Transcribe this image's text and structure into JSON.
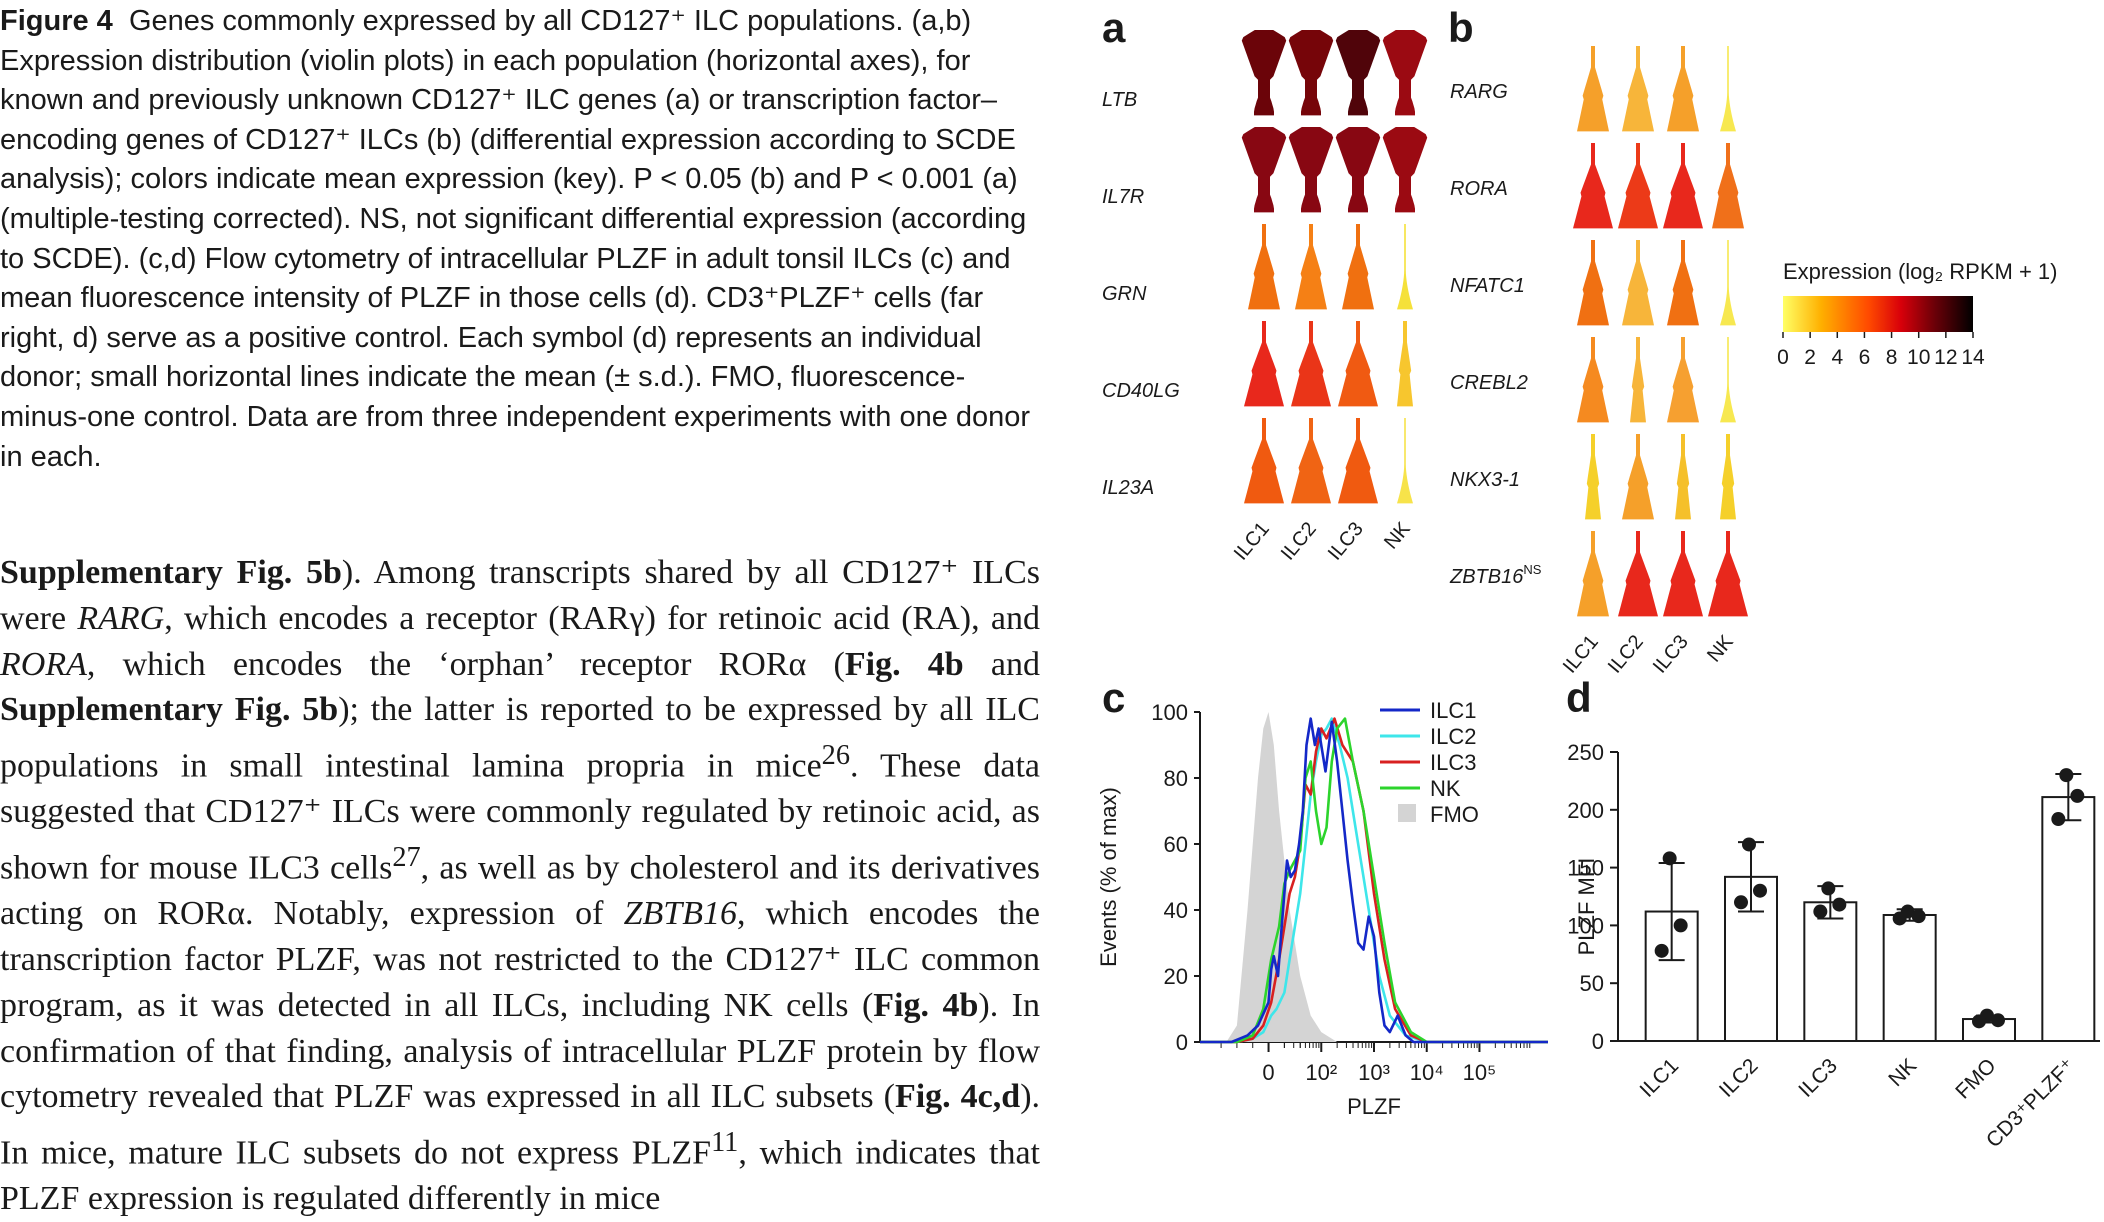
{
  "caption": {
    "fig_label": "Figure 4",
    "title": "Genes commonly expressed by all CD127⁺ ILC populations.",
    "text": "(a,b) Expression distribution (violin plots) in each population (horizontal axes), for known and previously unknown CD127⁺ ILC genes (a) or transcription factor–encoding genes of CD127⁺ ILCs (b) (differential expression according to SCDE analysis); colors indicate mean expression (key). P < 0.05 (b) and P < 0.001 (a) (multiple-testing corrected). NS, not significant differential expression (according to SCDE). (c,d) Flow cytometry of intracellular PLZF in adult tonsil ILCs (c) and mean fluorescence intensity of PLZF in those cells (d). CD3⁺PLZF⁺ cells (far right, d) serve as a positive control. Each symbol (d) represents an individual donor; small horizontal lines indicate the mean (± s.d.). FMO, fluorescence-minus-one control. Data are from three independent experiments with one donor in each."
  },
  "body": {
    "ref1": "Supplementary Fig. 5b",
    "t1": "). Among transcripts shared by all CD127⁺ ILCs were ",
    "gene1": "RARG",
    "t2": ", which encodes a receptor (RARγ) for retinoic acid (RA), and ",
    "gene2": "RORA",
    "t3": ", which encodes the ‘orphan’ receptor RORα (",
    "ref2": "Fig. 4b",
    "t4": " and ",
    "ref3": "Supplementary Fig. 5b",
    "t5": "); the latter is reported to be expressed by all ILC populations in small intestinal lamina propria in mice",
    "sup1": "26",
    "t6": ". These data suggested that CD127⁺ ILCs were commonly regulated by retinoic acid, as shown for mouse ILC3 cells",
    "sup2": "27",
    "t7": ", as well as by cholesterol and its derivatives acting on RORα. Notably, expression of ",
    "gene3": "ZBTB16",
    "t8": ", which encodes the transcription factor PLZF, was not restricted to the CD127⁺ ILC common program, as it was detected in all ILCs, including NK cells (",
    "ref4": "Fig. 4b",
    "t9": "). In confirmation of that finding, analysis of intracellular PLZF protein by flow cytometry revealed that PLZF was expressed in all ILC subsets (",
    "ref5": "Fig. 4c,d",
    "t10": "). In mice, mature ILC subsets do not express PLZF",
    "sup3": "11",
    "t11": ", which indicates that PLZF expression is regulated differently in mice"
  },
  "colorbar": {
    "title": "Expression (log₂ RPKM + 1)",
    "ticks": [
      "0",
      "2",
      "4",
      "6",
      "8",
      "10",
      "12",
      "14"
    ],
    "colors": [
      "#ffff66",
      "#ffb000",
      "#ff4a00",
      "#d8000a",
      "#6a0008",
      "#000000"
    ]
  },
  "chart_data": [
    {
      "type": "violin",
      "panel": "a",
      "populations": [
        "ILC1",
        "ILC2",
        "ILC3",
        "NK"
      ],
      "genes": [
        "LTB",
        "IL7R",
        "GRN",
        "CD40LG",
        "IL23A"
      ],
      "mean_expression": [
        [
          12,
          11.5,
          13,
          10
        ],
        [
          11,
          11,
          11,
          10
        ],
        [
          5,
          5,
          5,
          1
        ],
        [
          8,
          7.5,
          6,
          2
        ],
        [
          6,
          6,
          6,
          1
        ]
      ],
      "colors": [
        [
          "#6b0409",
          "#760509",
          "#50040a",
          "#9b0a12"
        ],
        [
          "#880712",
          "#880712",
          "#880712",
          "#9b0a12"
        ],
        [
          "#f07010",
          "#f58015",
          "#f07010",
          "#f5e13a"
        ],
        [
          "#e8281c",
          "#ea3518",
          "#f05a12",
          "#f7c62e"
        ],
        [
          "#f05a10",
          "#f06414",
          "#f05a10",
          "#f7e34a"
        ]
      ]
    },
    {
      "type": "violin",
      "panel": "b",
      "populations": [
        "ILC1",
        "ILC2",
        "ILC3",
        "NK"
      ],
      "genes": [
        "RARG",
        "RORA",
        "NFATC1",
        "CREBL2",
        "NKX3-1",
        "ZBTB16"
      ],
      "gene_superscripts": [
        "",
        "",
        "",
        "",
        "",
        "NS"
      ],
      "mean_expression": [
        [
          4,
          3.5,
          4,
          0.5
        ],
        [
          7,
          7,
          7,
          5
        ],
        [
          5,
          3.5,
          5,
          1
        ],
        [
          4,
          2.5,
          3,
          0.5
        ],
        [
          2,
          3,
          2.5,
          2
        ],
        [
          4,
          7,
          7,
          7
        ]
      ],
      "colors": [
        [
          "#f5a02a",
          "#f7b53a",
          "#f5a02a",
          "#f7e850"
        ],
        [
          "#e8281c",
          "#ec3a18",
          "#e8281c",
          "#f0701a"
        ],
        [
          "#f07012",
          "#f7b53a",
          "#f07012",
          "#f7e850"
        ],
        [
          "#f58a20",
          "#f7b53a",
          "#f6a030",
          "#f7e850"
        ],
        [
          "#f5d02a",
          "#f5a02a",
          "#f5c02a",
          "#f5d02a"
        ],
        [
          "#f5a02a",
          "#e8281c",
          "#e8281c",
          "#e8281c"
        ]
      ]
    },
    {
      "type": "line",
      "panel": "c",
      "xlabel": "PLZF",
      "ylabel": "Events (% of max)",
      "ylim": [
        0,
        100
      ],
      "yticks": [
        "0",
        "20",
        "40",
        "60",
        "80",
        "100"
      ],
      "xticks": [
        "0",
        "10²",
        "10³",
        "10⁴",
        "10⁵"
      ],
      "series": [
        {
          "name": "ILC1",
          "color": "#1428c8",
          "x": [
            -1.3,
            -1,
            -0.7,
            -0.4,
            -0.2,
            0,
            0.05,
            0.1,
            0.18,
            0.25,
            0.35,
            0.42,
            0.5,
            0.58,
            0.65,
            0.72,
            0.8,
            0.88,
            0.95,
            1.02,
            1.08,
            1.2,
            1.3,
            1.4,
            1.5,
            1.6,
            1.7,
            1.8,
            1.9,
            2,
            2.1,
            2.2,
            2.3,
            2.45,
            2.6,
            2.75,
            2.9,
            3,
            3.2,
            3.5,
            4,
            4.5,
            5,
            5.3
          ],
          "y": [
            0,
            0,
            0,
            2,
            5,
            12,
            22,
            26,
            20,
            35,
            55,
            50,
            52,
            60,
            70,
            90,
            98,
            90,
            95,
            88,
            82,
            97,
            85,
            70,
            55,
            42,
            30,
            28,
            38,
            32,
            15,
            5,
            3,
            8,
            2,
            0,
            0,
            0,
            0,
            0,
            0,
            0,
            0,
            0
          ]
        },
        {
          "name": "ILC2",
          "color": "#3ee6ea",
          "x": [
            -1.3,
            -0.6,
            -0.3,
            -0.1,
            0.05,
            0.15,
            0.3,
            0.4,
            0.5,
            0.6,
            0.7,
            0.8,
            0.9,
            1,
            1.1,
            1.2,
            1.35,
            1.5,
            1.65,
            1.8,
            1.95,
            2.1,
            2.3,
            2.6,
            3,
            4,
            5,
            5.3
          ],
          "y": [
            0,
            0,
            1,
            3,
            8,
            10,
            15,
            25,
            35,
            45,
            60,
            75,
            85,
            93,
            95,
            98,
            90,
            80,
            65,
            50,
            35,
            20,
            8,
            2,
            0,
            0,
            0,
            0
          ]
        },
        {
          "name": "ILC3",
          "color": "#d82020",
          "x": [
            -1.3,
            -0.6,
            -0.3,
            -0.1,
            0.05,
            0.2,
            0.3,
            0.4,
            0.5,
            0.6,
            0.7,
            0.8,
            0.9,
            1,
            1.1,
            1.25,
            1.4,
            1.6,
            1.8,
            2,
            2.2,
            2.4,
            2.7,
            3,
            4,
            5,
            5.3
          ],
          "y": [
            0,
            0,
            1,
            5,
            12,
            25,
            35,
            45,
            50,
            60,
            78,
            75,
            88,
            95,
            92,
            98,
            90,
            85,
            70,
            45,
            25,
            10,
            2,
            0,
            0,
            0,
            0
          ]
        },
        {
          "name": "NK",
          "color": "#2cd42c",
          "x": [
            -1.3,
            -0.6,
            -0.3,
            -0.1,
            0.05,
            0.2,
            0.3,
            0.4,
            0.5,
            0.6,
            0.7,
            0.8,
            0.9,
            1,
            1.1,
            1.2,
            1.3,
            1.45,
            1.6,
            1.8,
            2,
            2.2,
            2.4,
            2.7,
            3,
            4,
            5,
            5.3
          ],
          "y": [
            0,
            0,
            2,
            10,
            25,
            35,
            48,
            52,
            55,
            58,
            80,
            85,
            70,
            60,
            65,
            85,
            95,
            98,
            85,
            70,
            50,
            30,
            12,
            3,
            0,
            0,
            0,
            0
          ]
        },
        {
          "name": "FMO",
          "color": "#d4d4d4",
          "x": [
            -1.3,
            -0.8,
            -0.6,
            -0.4,
            -0.2,
            -0.1,
            0,
            0.1,
            0.2,
            0.4,
            0.6,
            0.8,
            1,
            1.3,
            5.3
          ],
          "y": [
            0,
            0,
            5,
            40,
            80,
            95,
            100,
            90,
            70,
            40,
            20,
            8,
            3,
            0,
            0
          ]
        }
      ]
    },
    {
      "type": "bar",
      "panel": "d",
      "ylabel": "PLZF MFI",
      "ylim": [
        0,
        250
      ],
      "yticks": [
        "0",
        "50",
        "100",
        "150",
        "200",
        "250"
      ],
      "categories": [
        "ILC1",
        "ILC2",
        "ILC3",
        "NK",
        "FMO",
        "CD3⁺PLZF⁺"
      ],
      "values": [
        112,
        142,
        120,
        109,
        19,
        211
      ],
      "sd": [
        42,
        30,
        14,
        5,
        3,
        20
      ],
      "points": [
        [
          158,
          100,
          78
        ],
        [
          170,
          130,
          120
        ],
        [
          132,
          118,
          112
        ],
        [
          112,
          108,
          106
        ],
        [
          22,
          18,
          17
        ],
        [
          230,
          212,
          192
        ]
      ]
    }
  ],
  "panels": {
    "a": "a",
    "b": "b",
    "c": "c",
    "d": "d"
  },
  "legend_c": [
    "ILC1",
    "ILC2",
    "ILC3",
    "NK",
    "FMO"
  ]
}
